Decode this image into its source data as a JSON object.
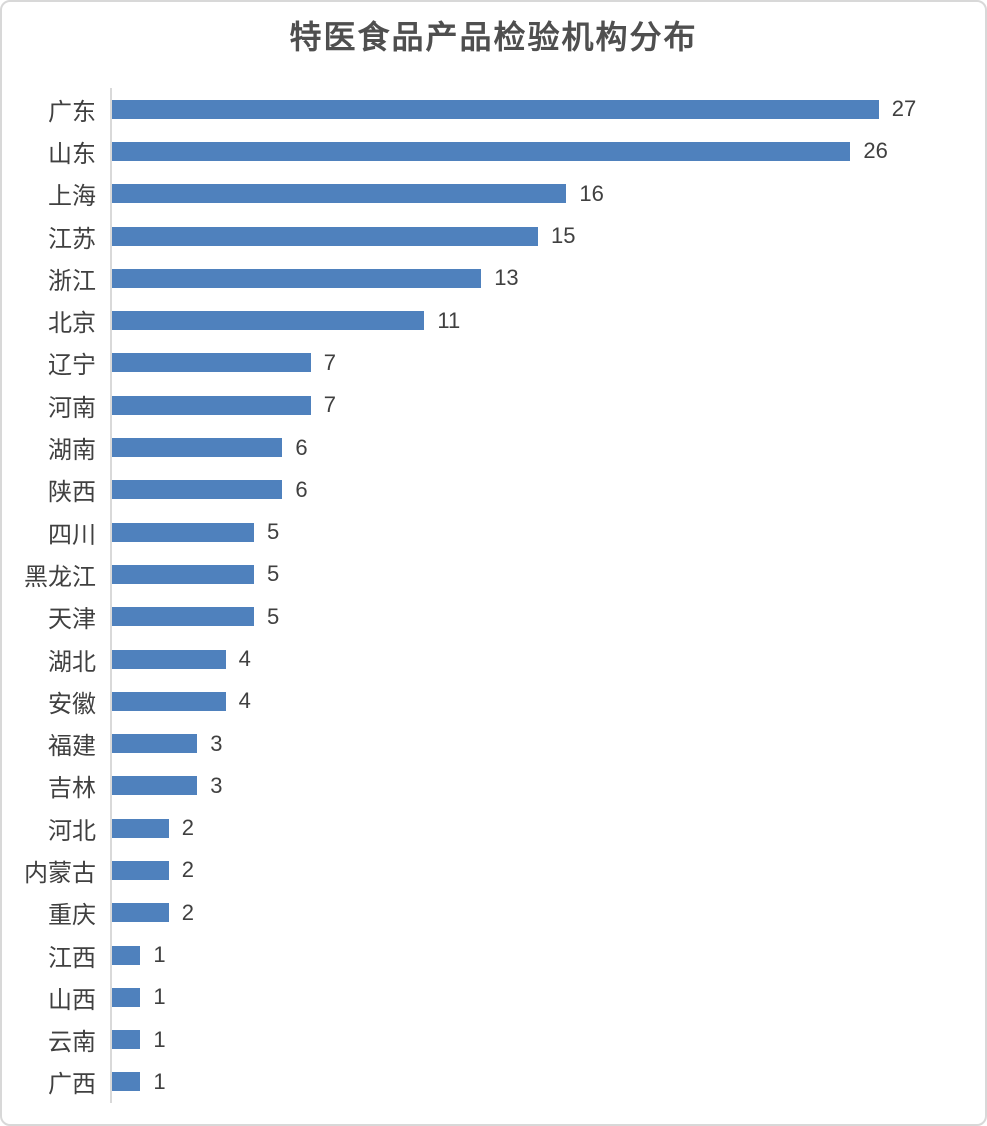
{
  "chart_data": {
    "type": "bar",
    "orientation": "horizontal",
    "title": "特医食品产品检验机构分布",
    "categories": [
      "广东",
      "山东",
      "上海",
      "江苏",
      "浙江",
      "北京",
      "辽宁",
      "河南",
      "湖南",
      "陕西",
      "四川",
      "黑龙江",
      "天津",
      "湖北",
      "安徽",
      "福建",
      "吉林",
      "河北",
      "内蒙古",
      "重庆",
      "江西",
      "山西",
      "云南",
      "广西"
    ],
    "values": [
      27,
      26,
      16,
      15,
      13,
      11,
      7,
      7,
      6,
      6,
      5,
      5,
      5,
      4,
      4,
      3,
      3,
      2,
      2,
      2,
      1,
      1,
      1,
      1
    ],
    "value_labels_shown": true,
    "xlim": [
      0,
      30
    ],
    "grid": false,
    "legend": false
  },
  "colors": {
    "bar": "#4f81bd",
    "title_text": "#4f4f4f",
    "category_text": "#404040",
    "value_text": "#404040",
    "axis_line": "#d9d9d9",
    "card_border": "#d8d8d8",
    "background": "#ffffff"
  }
}
